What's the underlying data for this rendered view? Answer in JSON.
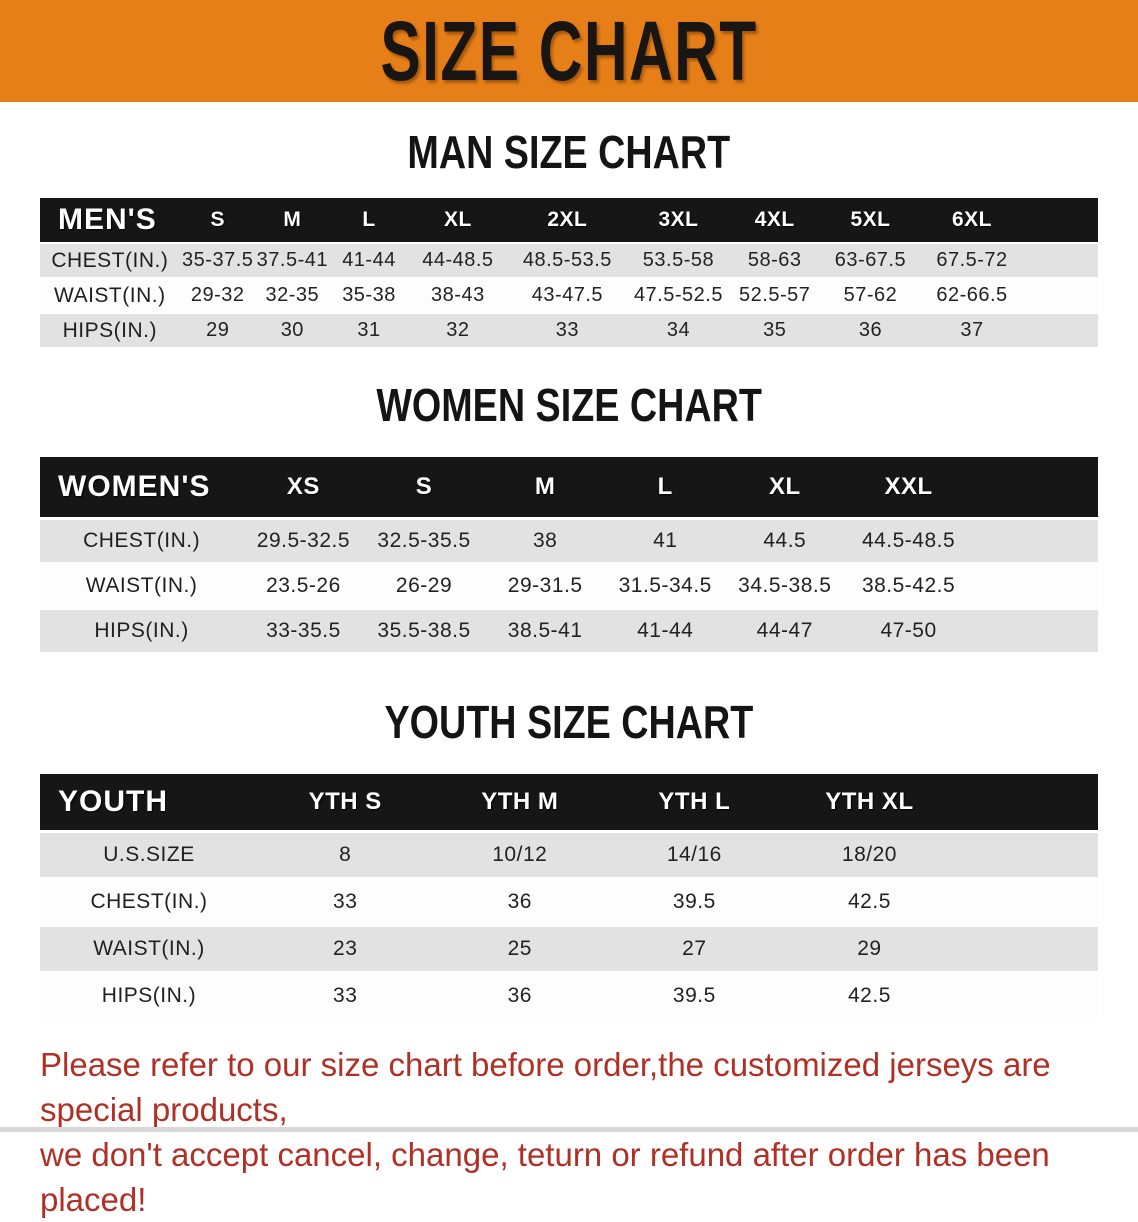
{
  "banner": {
    "title": "SIZE CHART"
  },
  "men": {
    "heading": "MAN SIZE CHART",
    "label": "MEN'S",
    "columns": [
      "S",
      "M",
      "L",
      "XL",
      "2XL",
      "3XL",
      "4XL",
      "5XL",
      "6XL"
    ],
    "rows": [
      {
        "label": "CHEST(IN.)",
        "values": [
          "35-37.5",
          "37.5-41",
          "41-44",
          "44-48.5",
          "48.5-53.5",
          "53.5-58",
          "58-63",
          "63-67.5",
          "67.5-72"
        ]
      },
      {
        "label": "WAIST(IN.)",
        "values": [
          "29-32",
          "32-35",
          "35-38",
          "38-43",
          "43-47.5",
          "47.5-52.5",
          "52.5-57",
          "57-62",
          "62-66.5"
        ]
      },
      {
        "label": "HIPS(IN.)",
        "values": [
          "29",
          "30",
          "31",
          "32",
          "33",
          "34",
          "35",
          "36",
          "37"
        ]
      }
    ]
  },
  "women": {
    "heading": "WOMEN SIZE CHART",
    "label": "WOMEN'S",
    "columns": [
      "XS",
      "S",
      "M",
      "L",
      "XL",
      "XXL"
    ],
    "rows": [
      {
        "label": "CHEST(IN.)",
        "values": [
          "29.5-32.5",
          "32.5-35.5",
          "38",
          "41",
          "44.5",
          "44.5-48.5"
        ]
      },
      {
        "label": "WAIST(IN.)",
        "values": [
          "23.5-26",
          "26-29",
          "29-31.5",
          "31.5-34.5",
          "34.5-38.5",
          "38.5-42.5"
        ]
      },
      {
        "label": "HIPS(IN.)",
        "values": [
          "33-35.5",
          "35.5-38.5",
          "38.5-41",
          "41-44",
          "44-47",
          "47-50"
        ]
      }
    ]
  },
  "youth": {
    "heading": "YOUTH SIZE CHART",
    "label": "YOUTH",
    "columns": [
      "YTH S",
      "YTH M",
      "YTH L",
      "YTH XL"
    ],
    "rows": [
      {
        "label": "U.S.SIZE",
        "values": [
          "8",
          "10/12",
          "14/16",
          "18/20"
        ]
      },
      {
        "label": "CHEST(IN.)",
        "values": [
          "33",
          "36",
          "39.5",
          "42.5"
        ]
      },
      {
        "label": "WAIST(IN.)",
        "values": [
          "23",
          "25",
          "27",
          "29"
        ]
      },
      {
        "label": "HIPS(IN.)",
        "values": [
          "33",
          "36",
          "39.5",
          "42.5"
        ]
      }
    ]
  },
  "disclaimer": {
    "line1": "Please refer to our size chart before order,the customized jerseys are special products,",
    "line2": "we don't accept cancel, change, teturn or refund after order has been placed!"
  },
  "colors": {
    "banner_bg": "#E67F17",
    "header_bg": "#161616",
    "stripe": "#E2E2E2",
    "disclaimer": "#B03026"
  }
}
